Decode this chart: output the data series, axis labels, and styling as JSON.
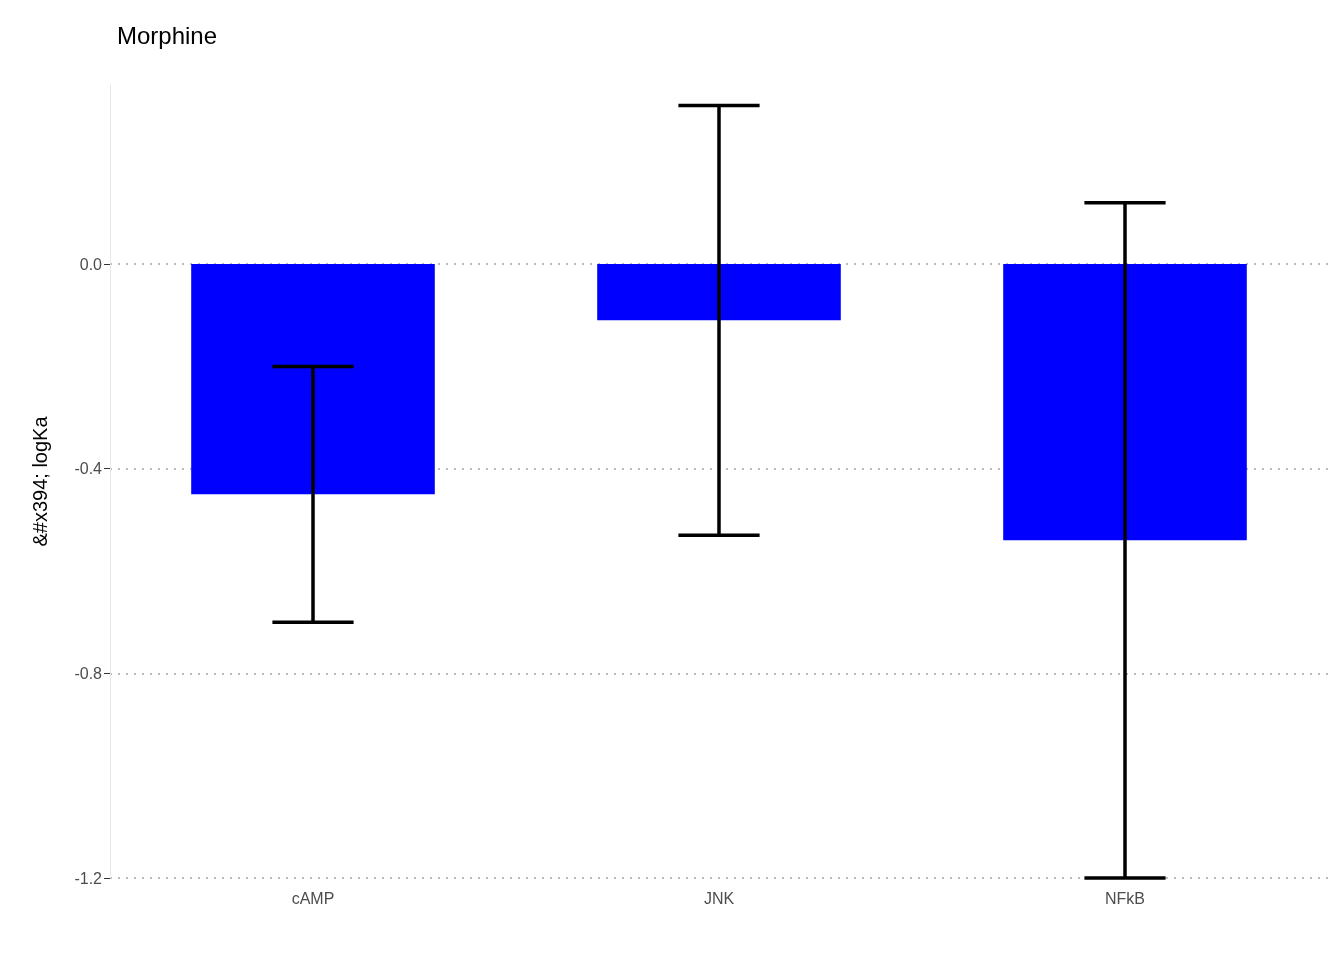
{
  "chart_data": {
    "type": "bar",
    "title": "Morphine",
    "ylabel": "&#x394; logKa",
    "categories": [
      "cAMP",
      "JNK",
      "NFkB"
    ],
    "values": [
      -0.45,
      -0.11,
      -0.54
    ],
    "color": "#0000ff",
    "errors": [
      [
        -0.7,
        -0.2
      ],
      [
        -0.53,
        0.31
      ],
      [
        -1.2,
        0.12
      ]
    ],
    "ylim": [
      -1.2,
      0.35
    ],
    "yticks": [
      {
        "value": 0,
        "label": "0.0"
      },
      -0.4,
      -0.8,
      -1.2
    ],
    "grid": "y",
    "line_style": "dotted"
  }
}
